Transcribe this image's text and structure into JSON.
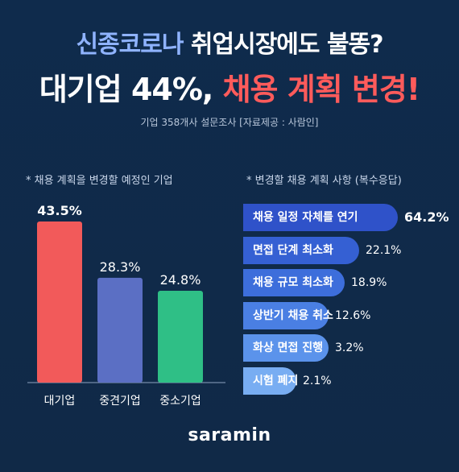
{
  "title_line1_blue": "신종코로나",
  "title_line1_rest": " 취업시장에도 불똥?",
  "title_line2_white": "대기업 44%,",
  "title_line2_red": " 채용 계획 변경!",
  "source": "기업 358개사 설문조사 [자료제공 : 사람인]",
  "logo": "saramin",
  "colors": {
    "background": "#0f2a4a",
    "accent_red": "#ff5b5b",
    "accent_blue": "#8fb3ff"
  },
  "chart_data": [
    {
      "type": "bar",
      "title": "* 채용 계획을 변경할 예정인 기업",
      "categories": [
        "대기업",
        "중견기업",
        "중소기업"
      ],
      "values": [
        43.5,
        28.3,
        24.8
      ],
      "value_labels": [
        "43.5%",
        "28.3%",
        "24.8%"
      ],
      "colors": [
        "#f25a5a",
        "#5b6fc4",
        "#2fbf86"
      ],
      "unit": "%"
    },
    {
      "type": "bar",
      "orientation": "horizontal",
      "title": "* 변경할 채용 계획 사항 (복수응답)",
      "categories": [
        "채용 일정 자체를 연기",
        "면접 단계 최소화",
        "채용 규모 최소화",
        "상반기 채용 취소",
        "화상 면접 진행",
        "시험 폐지"
      ],
      "values": [
        64.2,
        22.1,
        18.9,
        12.6,
        3.2,
        2.1
      ],
      "value_labels": [
        "64.2%",
        "22.1%",
        "18.9%",
        "12.6%",
        "3.2%",
        "2.1%"
      ],
      "colors": [
        "#2f52c9",
        "#3560d3",
        "#3d6edb",
        "#4a7fe3",
        "#5b93eb",
        "#78adf2"
      ],
      "unit": "%"
    }
  ]
}
